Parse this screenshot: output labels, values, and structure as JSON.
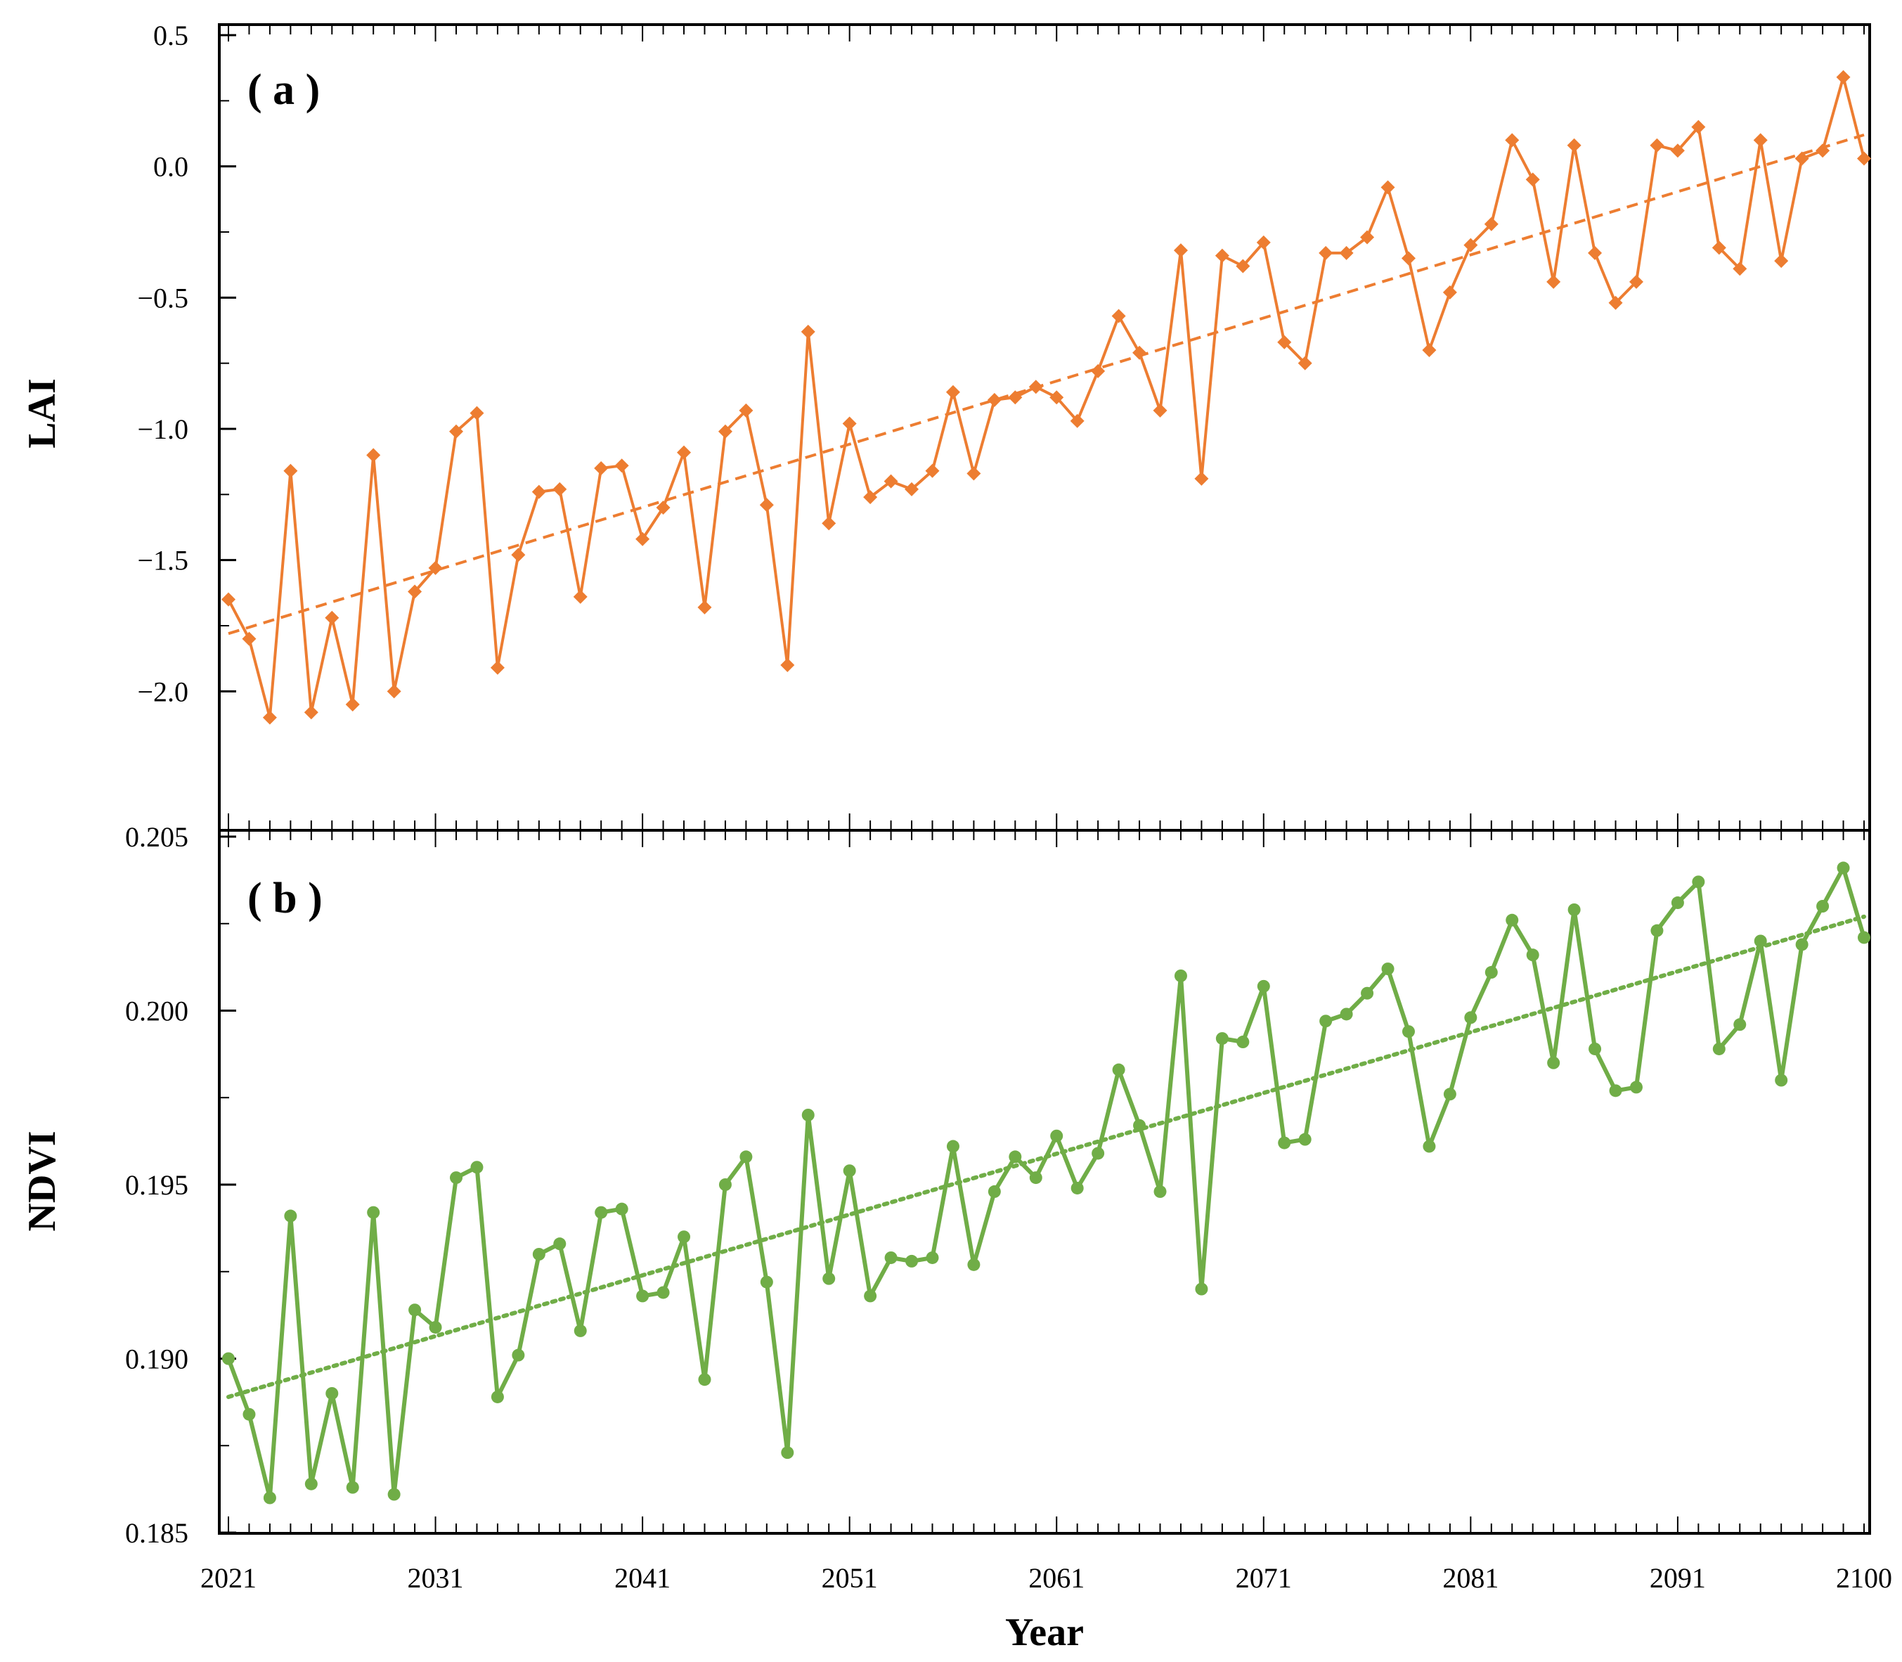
{
  "chart_data": [
    {
      "type": "line",
      "panel_label": "( a )",
      "ylabel": "LAI",
      "xlabel": "",
      "ylim": [
        -2.5,
        0.5
      ],
      "yticks": [
        0.5,
        0.0,
        -0.5,
        -1.0,
        -1.5,
        -2.0
      ],
      "ytick_labels": [
        "0.5",
        "0.0",
        "−0.5",
        "−1.0",
        "−1.5",
        "−2.0"
      ],
      "xlim": [
        2021,
        2100
      ],
      "colors": {
        "series": "#ED7D31",
        "trend": "#ED7D31"
      },
      "marker": "diamond",
      "series": [
        {
          "name": "LAI",
          "start_year": 2021,
          "values": [
            -1.65,
            -1.8,
            -2.1,
            -1.16,
            -2.08,
            -1.72,
            -2.05,
            -1.1,
            -2.0,
            -1.62,
            -1.53,
            -1.01,
            -0.94,
            -1.91,
            -1.48,
            -1.24,
            -1.23,
            -1.64,
            -1.15,
            -1.14,
            -1.42,
            -1.3,
            -1.09,
            -1.68,
            -1.01,
            -0.93,
            -1.29,
            -1.9,
            -0.63,
            -1.36,
            -0.98,
            -1.26,
            -1.2,
            -1.23,
            -1.16,
            -0.86,
            -1.17,
            -0.89,
            -0.88,
            -0.84,
            -0.88,
            -0.97,
            -0.78,
            -0.57,
            -0.71,
            -0.93,
            -0.32,
            -1.19,
            -0.34,
            -0.38,
            -0.29,
            -0.67,
            -0.75,
            -0.33,
            -0.33,
            -0.27,
            -0.08,
            -0.35,
            -0.7,
            -0.48,
            -0.3,
            -0.22,
            0.1,
            -0.05,
            -0.44,
            0.08,
            -0.33,
            -0.52,
            -0.44,
            0.08,
            0.06,
            0.15,
            -0.31,
            -0.39,
            0.1,
            -0.36,
            0.03,
            0.06,
            0.34,
            0.03
          ]
        }
      ],
      "trendline": {
        "style": "dashed",
        "start": [
          2021,
          -1.78
        ],
        "end": [
          2100,
          0.12
        ]
      }
    },
    {
      "type": "line",
      "panel_label": "( b )",
      "ylabel": "NDVI",
      "xlabel": "Year",
      "ylim": [
        0.185,
        0.205
      ],
      "yticks": [
        0.205,
        0.2,
        0.195,
        0.19,
        0.185
      ],
      "ytick_labels": [
        "0.205",
        "0.200",
        "0.195",
        "0.190",
        "0.185"
      ],
      "xlim": [
        2021,
        2100
      ],
      "xticks": [
        2021,
        2031,
        2041,
        2051,
        2061,
        2071,
        2081,
        2091,
        2100
      ],
      "xtick_labels": [
        "2021",
        "2031",
        "2041",
        "2051",
        "2061",
        "2071",
        "2081",
        "2091",
        "2100"
      ],
      "colors": {
        "series": "#70AD47",
        "trend": "#70AD47"
      },
      "marker": "circle",
      "series": [
        {
          "name": "NDVI",
          "start_year": 2021,
          "values": [
            0.19,
            0.1884,
            0.186,
            0.1941,
            0.1864,
            0.189,
            0.1863,
            0.1942,
            0.1861,
            0.1914,
            0.1909,
            0.1952,
            0.1955,
            0.1889,
            0.1901,
            0.193,
            0.1933,
            0.1908,
            0.1942,
            0.1943,
            0.1918,
            0.1919,
            0.1935,
            0.1894,
            0.195,
            0.1958,
            0.1922,
            0.1873,
            0.197,
            0.1923,
            0.1954,
            0.1918,
            0.1929,
            0.1928,
            0.1929,
            0.1961,
            0.1927,
            0.1948,
            0.1958,
            0.1952,
            0.1964,
            0.1949,
            0.1959,
            0.1983,
            0.1967,
            0.1948,
            0.201,
            0.192,
            0.1992,
            0.1991,
            0.2007,
            0.1962,
            0.1963,
            0.1997,
            0.1999,
            0.2005,
            0.2012,
            0.1994,
            0.1961,
            0.1976,
            0.1998,
            0.2011,
            0.2026,
            0.2016,
            0.1985,
            0.2029,
            0.1989,
            0.1977,
            0.1978,
            0.2023,
            0.2031,
            0.2037,
            0.1989,
            0.1996,
            0.202,
            0.198,
            0.2019,
            0.203,
            0.2041,
            0.2021
          ]
        }
      ],
      "trendline": {
        "style": "dotted",
        "start": [
          2021,
          0.1889
        ],
        "end": [
          2100,
          0.2027
        ]
      }
    }
  ]
}
